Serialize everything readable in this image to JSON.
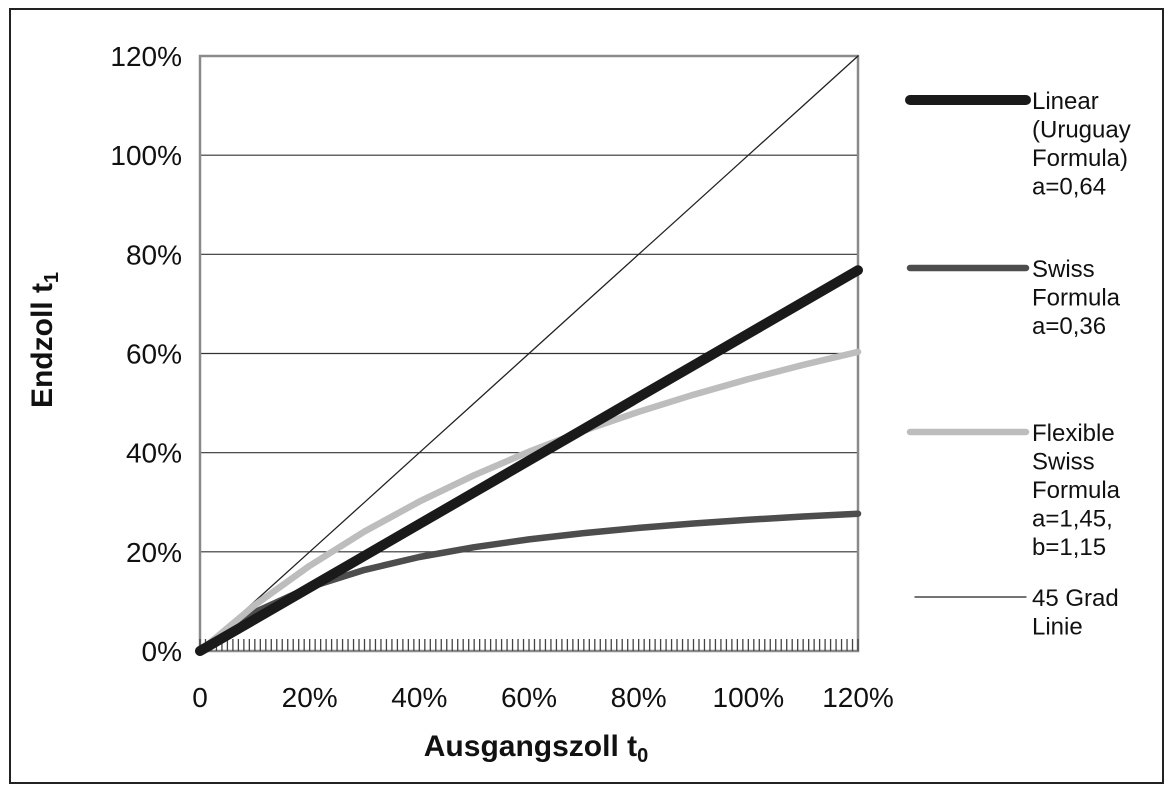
{
  "chart_data": {
    "type": "line",
    "title": "",
    "xlabel": "Ausgangszoll t",
    "xlabel_sub": "0",
    "ylabel": "Endzoll t",
    "ylabel_sub": "1",
    "xlim": [
      0,
      1.2
    ],
    "ylim": [
      0,
      1.2
    ],
    "x_ticks": [
      0,
      0.2,
      0.4,
      0.6,
      0.8,
      1.0,
      1.2
    ],
    "x_tick_labels": [
      "0",
      "20%",
      "40%",
      "60%",
      "80%",
      "100%",
      "120%"
    ],
    "y_ticks": [
      0,
      0.2,
      0.4,
      0.6,
      0.8,
      1.0,
      1.2
    ],
    "y_tick_labels": [
      "0%",
      "20%",
      "40%",
      "60%",
      "80%",
      "100%",
      "120%"
    ],
    "grid": "horizontal",
    "legend_position": "right",
    "x": [
      0,
      0.1,
      0.2,
      0.3,
      0.4,
      0.5,
      0.6,
      0.7,
      0.8,
      0.9,
      1.0,
      1.1,
      1.2
    ],
    "series": [
      {
        "name": "Linear (Uruguay Formula) a=0,64",
        "legend_lines": [
          "Linear",
          "(Uruguay",
          "Formula)",
          "a=0,64"
        ],
        "values": [
          0,
          0.064,
          0.128,
          0.192,
          0.256,
          0.32,
          0.384,
          0.448,
          0.512,
          0.576,
          0.64,
          0.704,
          0.768
        ],
        "color": "#1a1a1a",
        "stroke": "thick"
      },
      {
        "name": "Swiss Formula a=0,36",
        "legend_lines": [
          "Swiss",
          "Formula",
          "a=0,36"
        ],
        "values": [
          0,
          0.0783,
          0.1286,
          0.1636,
          0.1895,
          0.2093,
          0.225,
          0.2377,
          0.2483,
          0.2571,
          0.2647,
          0.2713,
          0.277
        ],
        "color": "#4d4d4d",
        "stroke": "medium"
      },
      {
        "name": "Flexible Swiss Formula a=1,45, b=1,15",
        "legend_lines": [
          "Flexible",
          "Swiss",
          "Formula",
          "a=1,45,",
          "b=1,15"
        ],
        "values": [
          0,
          0.0926,
          0.1721,
          0.241,
          0.3013,
          0.3546,
          0.4019,
          0.4443,
          0.4825,
          0.517,
          0.5484,
          0.577,
          0.6033
        ],
        "color": "#bdbdbd",
        "stroke": "medium"
      },
      {
        "name": "45 Grad Linie",
        "legend_lines": [
          "45 Grad",
          "Linie"
        ],
        "values": [
          0,
          0.1,
          0.2,
          0.3,
          0.4,
          0.5,
          0.6,
          0.7,
          0.8,
          0.9,
          1.0,
          1.1,
          1.2
        ],
        "color": "#222222",
        "stroke": "thin"
      }
    ]
  }
}
